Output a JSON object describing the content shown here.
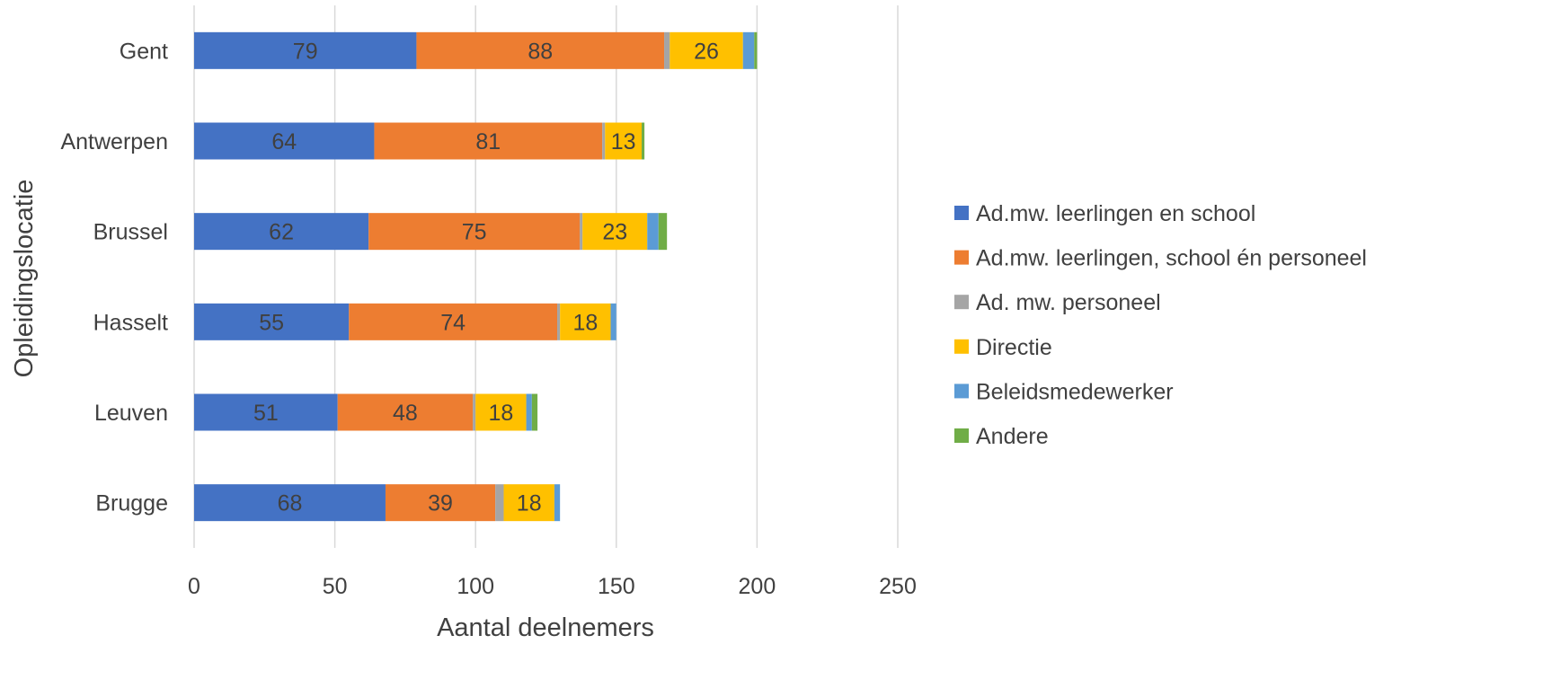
{
  "chart_data": {
    "type": "bar",
    "orientation": "horizontal",
    "stacked": true,
    "categories": [
      "Gent",
      "Antwerpen",
      "Brussel",
      "Hasselt",
      "Leuven",
      "Brugge"
    ],
    "series": [
      {
        "name": "Ad.mw. leerlingen en school",
        "color": "#4472C4",
        "values": [
          79,
          64,
          62,
          55,
          51,
          68
        ],
        "show_labels": true
      },
      {
        "name": "Ad.mw. leerlingen, school én personeel",
        "color": "#ED7D31",
        "values": [
          88,
          81,
          75,
          74,
          48,
          39
        ],
        "show_labels": true
      },
      {
        "name": "Ad. mw. personeel",
        "color": "#A5A5A5",
        "values": [
          2,
          1,
          1,
          1,
          1,
          3
        ],
        "show_labels": false
      },
      {
        "name": "Directie",
        "color": "#FFC000",
        "values": [
          26,
          13,
          23,
          18,
          18,
          18
        ],
        "show_labels": true
      },
      {
        "name": "Beleidsmedewerker",
        "color": "#5B9BD5",
        "values": [
          4,
          0,
          4,
          2,
          2,
          2
        ],
        "show_labels": false
      },
      {
        "name": "Andere",
        "color": "#70AD47",
        "values": [
          1,
          1,
          3,
          0,
          2,
          0
        ],
        "show_labels": false
      }
    ],
    "xlabel": "Aantal deelnemers",
    "ylabel": "Opleidingslocatie",
    "xlim": [
      0,
      250
    ],
    "xticks": [
      0,
      50,
      100,
      150,
      200,
      250
    ],
    "grid": "vertical",
    "legend": "right"
  }
}
